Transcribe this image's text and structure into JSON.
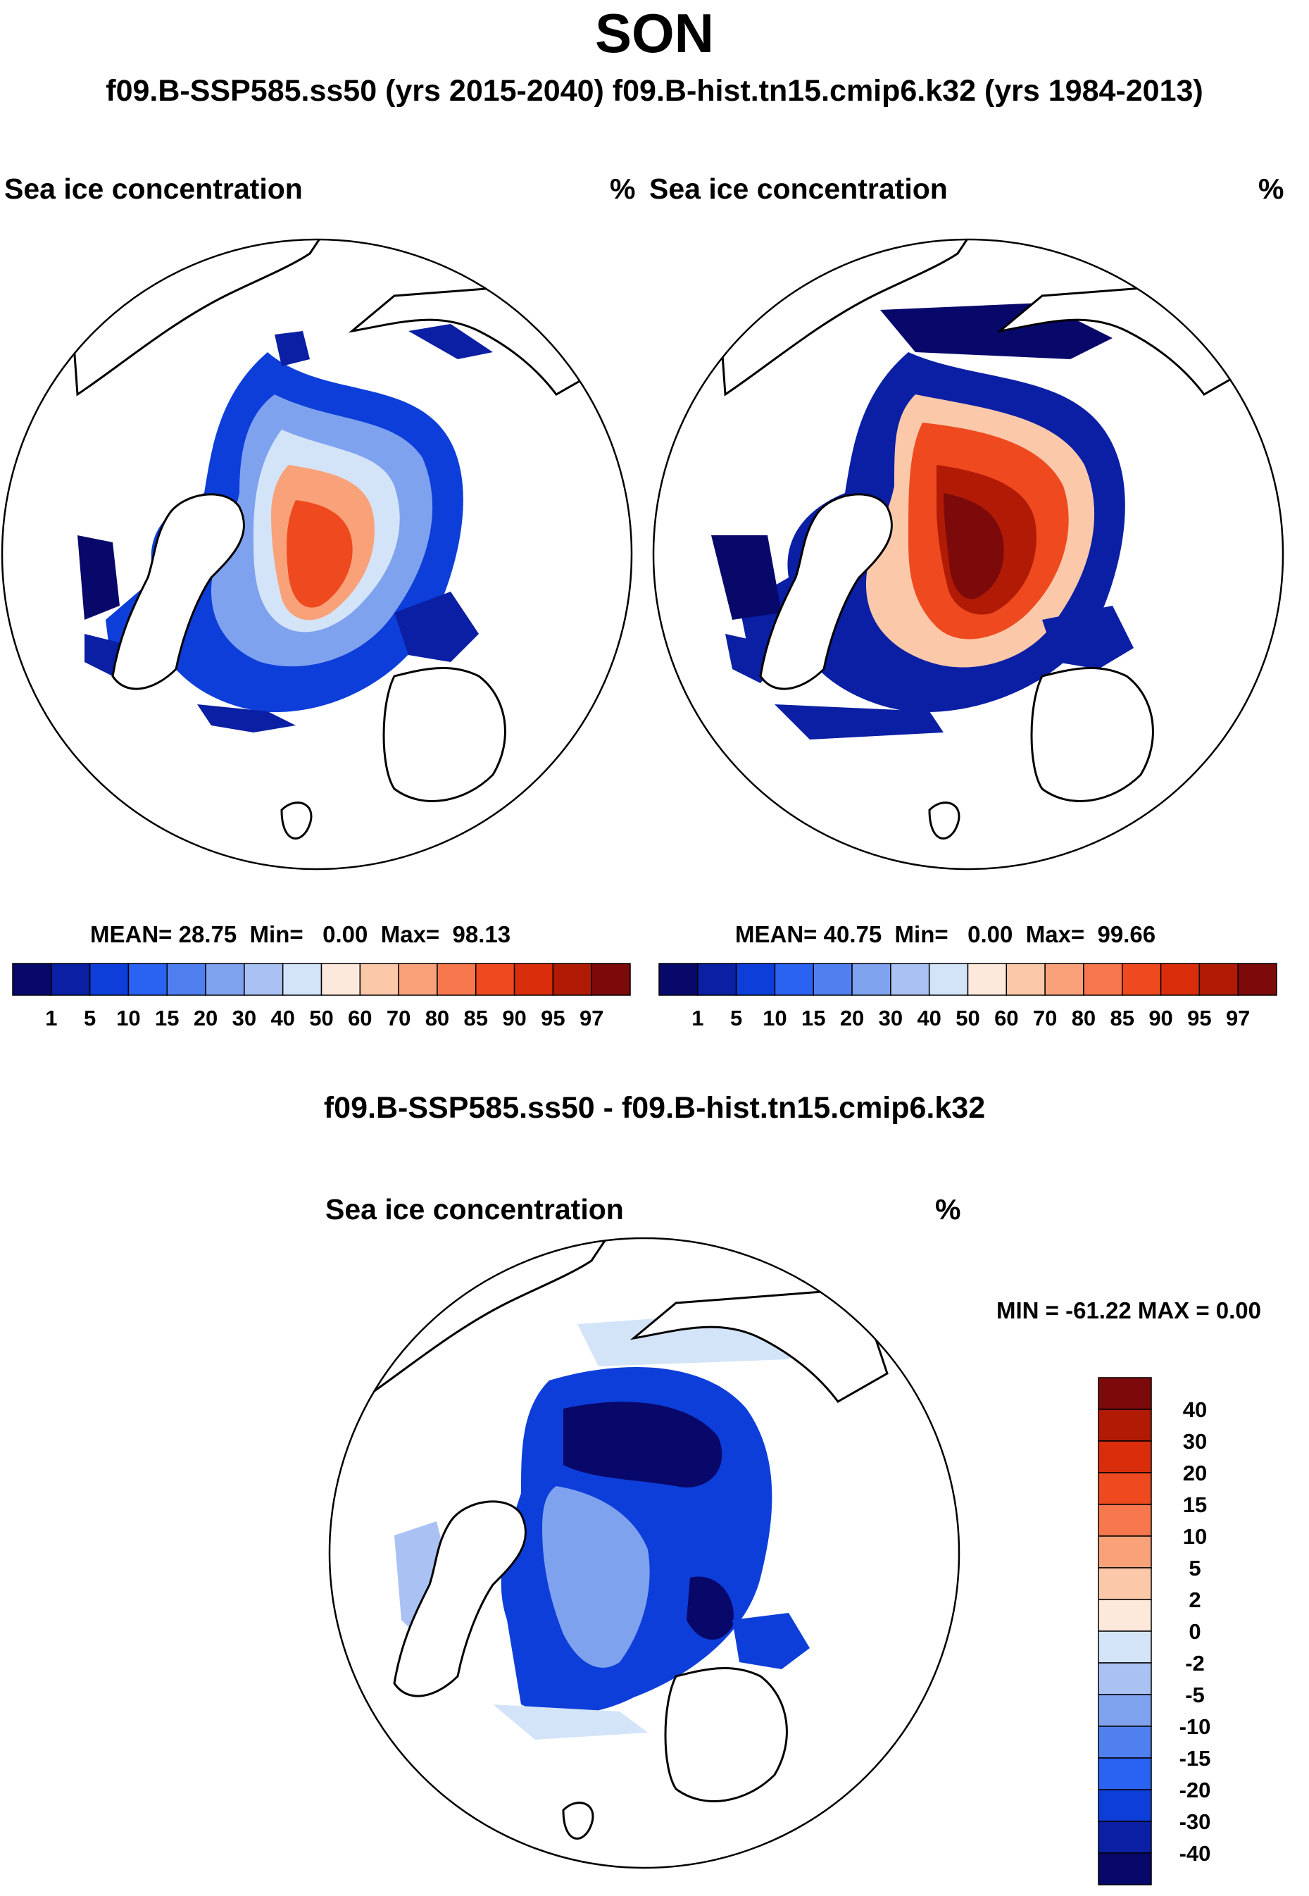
{
  "header": {
    "title": "SON",
    "subtitle": "f09.B-SSP585.ss50 (yrs 2015-2040)  f09.B-hist.tn15.cmip6.k32 (yrs 1984-2013)"
  },
  "colors": {
    "seq_levels": [
      "#08086b",
      "#0a1fa3",
      "#0d3ed9",
      "#2a62f2",
      "#5080ef",
      "#7fa2ef",
      "#a9c2f3",
      "#d4e4f8",
      "#fde9dc",
      "#fbc9aa",
      "#f9a27a",
      "#f6784c",
      "#ef4a1f",
      "#d92d0b",
      "#b11b06",
      "#7d0a0a"
    ],
    "diff_levels": [
      "#08086b",
      "#0a1fa3",
      "#0d3ed9",
      "#2a62f2",
      "#5080ef",
      "#7fa2ef",
      "#a9c2f3",
      "#d4e4f8",
      "#fde9dc",
      "#fbc9aa",
      "#f9a27a",
      "#f6784c",
      "#ef4a1f",
      "#d92d0b",
      "#b11b06",
      "#7d0a0a"
    ]
  },
  "chart_data": [
    {
      "type": "heatmap",
      "name": "f09.B-SSP585.ss50 (yrs 2015-2040)",
      "title_left": "Sea ice concentration",
      "title_right": "%",
      "projection": "north polar stereographic",
      "stats": {
        "mean_label": "MEAN=",
        "mean": "28.75",
        "min_label": "Min=",
        "min": "0.00",
        "max_label": "Max=",
        "max": "98.13"
      },
      "colorbar_ticks": [
        "1",
        "5",
        "10",
        "15",
        "20",
        "30",
        "40",
        "50",
        "60",
        "70",
        "80",
        "85",
        "90",
        "95",
        "97"
      ]
    },
    {
      "type": "heatmap",
      "name": "f09.B-hist.tn15.cmip6.k32 (yrs 1984-2013)",
      "title_left": "Sea ice concentration",
      "title_right": "%",
      "projection": "north polar stereographic",
      "stats": {
        "mean_label": "MEAN=",
        "mean": "40.75",
        "min_label": "Min=",
        "min": "0.00",
        "max_label": "Max=",
        "max": "99.66"
      },
      "colorbar_ticks": [
        "1",
        "5",
        "10",
        "15",
        "20",
        "30",
        "40",
        "50",
        "60",
        "70",
        "80",
        "85",
        "90",
        "95",
        "97"
      ]
    },
    {
      "type": "heatmap",
      "name": "difference",
      "main_title": "f09.B-SSP585.ss50 - f09.B-hist.tn15.cmip6.k32",
      "title_left": "Sea ice concentration",
      "title_right": "%",
      "projection": "north polar stereographic",
      "minmax_label": "MIN = -61.22 MAX =   0.00",
      "colorbar_ticks": [
        "40",
        "30",
        "20",
        "15",
        "10",
        "5",
        "2",
        "0",
        "-2",
        "-5",
        "-10",
        "-15",
        "-20",
        "-30",
        "-40"
      ]
    }
  ]
}
